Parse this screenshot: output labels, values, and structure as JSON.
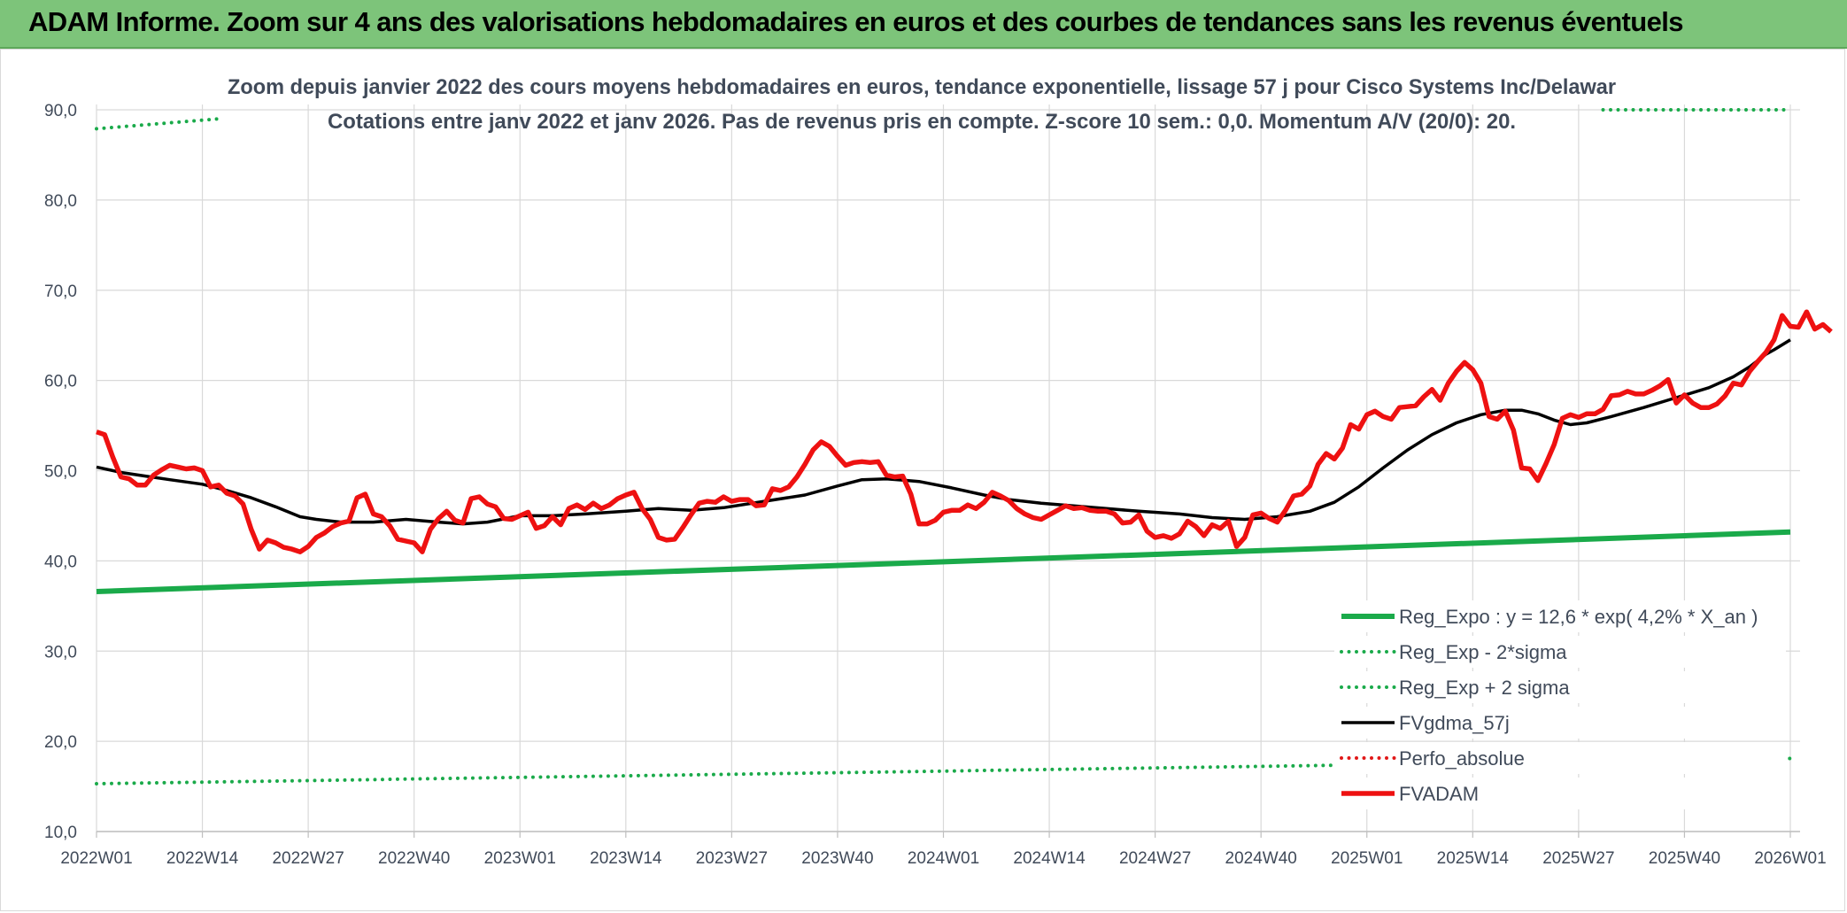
{
  "header": {
    "title": "ADAM Informe. Zoom sur 4 ans des valorisations hebdomadaires en euros et des courbes de tendances sans les revenus éventuels"
  },
  "colors": {
    "header_bg": "#7dc47a",
    "reg_expo": "#1aaa4a",
    "fvgdma": "#000000",
    "fvadam": "#ee1111",
    "perfo": "#e11818",
    "grid": "#d9d9d9",
    "axis_text": "#404a59"
  },
  "chart_data": {
    "type": "line",
    "title_line1": "Zoom depuis janvier 2022 des cours moyens hebdomadaires en euros, tendance exponentielle, lissage 57 j pour Cisco Systems Inc/Delawar",
    "title_line2": "Cotations entre janv 2022 et janv 2026. Pas de revenus pris en compte. Z-score 10 sem.: 0,0. Momentum A/V (20/0): 20.",
    "x_tick_labels": [
      "2022W01",
      "2022W14",
      "2022W27",
      "2022W40",
      "2023W01",
      "2023W14",
      "2023W27",
      "2023W40",
      "2024W01",
      "2024W14",
      "2024W27",
      "2024W40",
      "2025W01",
      "2025W14",
      "2025W27",
      "2025W40",
      "2026W01"
    ],
    "x_range_weeks": [
      0,
      208
    ],
    "y_tick_labels": [
      "10,0",
      "20,0",
      "30,0",
      "40,0",
      "50,0",
      "60,0",
      "70,0",
      "80,0",
      "90,0"
    ],
    "ylim": [
      10,
      90
    ],
    "grid": true,
    "legend_position": "bottom-right",
    "series": [
      {
        "name": "Reg_Expo : y = 12,6 * exp( 4,2% *  X_an )",
        "style": "solid-thick",
        "color": "#1aaa4a",
        "points": [
          [
            0,
            36.6
          ],
          [
            208,
            43.2
          ]
        ]
      },
      {
        "name": "Reg_Exp - 2*sigma",
        "style": "dotted",
        "color": "#1aaa4a",
        "points": [
          [
            0,
            15.3
          ],
          [
            208,
            18.1
          ]
        ]
      },
      {
        "name": "Reg_Exp + 2 sigma",
        "style": "dotted",
        "color": "#1aaa4a",
        "points": [
          [
            0,
            87.9
          ],
          [
            15,
            89.0
          ]
        ],
        "points_right": [
          [
            185,
            90.0
          ],
          [
            208,
            90.0
          ]
        ]
      },
      {
        "name": "FVgdma_57j",
        "style": "solid",
        "color": "#000000",
        "points": [
          [
            0,
            50.4
          ],
          [
            3,
            49.8
          ],
          [
            6,
            49.4
          ],
          [
            9,
            49.0
          ],
          [
            13,
            48.5
          ],
          [
            16,
            47.8
          ],
          [
            19,
            47.0
          ],
          [
            22,
            46.0
          ],
          [
            25,
            44.9
          ],
          [
            27,
            44.6
          ],
          [
            30,
            44.3
          ],
          [
            34,
            44.3
          ],
          [
            38,
            44.6
          ],
          [
            42,
            44.3
          ],
          [
            45,
            44.1
          ],
          [
            48,
            44.3
          ],
          [
            52,
            45.0
          ],
          [
            56,
            45.0
          ],
          [
            60,
            45.2
          ],
          [
            65,
            45.5
          ],
          [
            69,
            45.8
          ],
          [
            73,
            45.6
          ],
          [
            77,
            45.9
          ],
          [
            82,
            46.6
          ],
          [
            87,
            47.3
          ],
          [
            91,
            48.3
          ],
          [
            94,
            49.0
          ],
          [
            97,
            49.1
          ],
          [
            101,
            48.8
          ],
          [
            105,
            48.1
          ],
          [
            109,
            47.3
          ],
          [
            112,
            46.8
          ],
          [
            116,
            46.4
          ],
          [
            120,
            46.1
          ],
          [
            124,
            45.8
          ],
          [
            128,
            45.5
          ],
          [
            133,
            45.2
          ],
          [
            137,
            44.8
          ],
          [
            141,
            44.6
          ],
          [
            145,
            44.9
          ],
          [
            149,
            45.5
          ],
          [
            152,
            46.5
          ],
          [
            155,
            48.2
          ],
          [
            158,
            50.3
          ],
          [
            161,
            52.3
          ],
          [
            164,
            54.0
          ],
          [
            167,
            55.3
          ],
          [
            170,
            56.2
          ],
          [
            173,
            56.7
          ],
          [
            175,
            56.7
          ],
          [
            177,
            56.3
          ],
          [
            179,
            55.6
          ],
          [
            181,
            55.1
          ],
          [
            183,
            55.3
          ],
          [
            186,
            56.0
          ],
          [
            190,
            57.0
          ],
          [
            194,
            58.1
          ],
          [
            198,
            59.2
          ],
          [
            201,
            60.4
          ],
          [
            203,
            61.5
          ],
          [
            205,
            62.9
          ],
          [
            206,
            63.4
          ],
          [
            208,
            64.5
          ]
        ]
      },
      {
        "name": "Perfo_absolue",
        "style": "dotted",
        "color": "#e11818",
        "points": []
      },
      {
        "name": "FVADAM",
        "style": "solid-thick",
        "color": "#ee1111",
        "points": [
          [
            0,
            54.3
          ],
          [
            1,
            54.0
          ],
          [
            2,
            51.5
          ],
          [
            3,
            49.3
          ],
          [
            4,
            49.1
          ],
          [
            5,
            48.4
          ],
          [
            6,
            48.4
          ],
          [
            7,
            49.5
          ],
          [
            8,
            50.1
          ],
          [
            9,
            50.6
          ],
          [
            10,
            50.4
          ],
          [
            11,
            50.2
          ],
          [
            12,
            50.3
          ],
          [
            13,
            50.0
          ],
          [
            14,
            48.2
          ],
          [
            15,
            48.4
          ],
          [
            16,
            47.5
          ],
          [
            17,
            47.2
          ],
          [
            18,
            46.3
          ],
          [
            19,
            43.5
          ],
          [
            20,
            41.3
          ],
          [
            21,
            42.3
          ],
          [
            22,
            42.0
          ],
          [
            23,
            41.5
          ],
          [
            24,
            41.3
          ],
          [
            25,
            41.0
          ],
          [
            26,
            41.6
          ],
          [
            27,
            42.6
          ],
          [
            28,
            43.1
          ],
          [
            29,
            43.8
          ],
          [
            30,
            44.2
          ],
          [
            31,
            44.4
          ],
          [
            32,
            47.0
          ],
          [
            33,
            47.4
          ],
          [
            34,
            45.2
          ],
          [
            35,
            44.9
          ],
          [
            36,
            43.9
          ],
          [
            37,
            42.4
          ],
          [
            38,
            42.2
          ],
          [
            39,
            42.0
          ],
          [
            40,
            41.0
          ],
          [
            41,
            43.5
          ],
          [
            42,
            44.7
          ],
          [
            43,
            45.5
          ],
          [
            44,
            44.5
          ],
          [
            45,
            44.2
          ],
          [
            46,
            46.9
          ],
          [
            47,
            47.1
          ],
          [
            48,
            46.3
          ],
          [
            49,
            46.0
          ],
          [
            50,
            44.7
          ],
          [
            51,
            44.6
          ],
          [
            52,
            45.0
          ],
          [
            53,
            45.4
          ],
          [
            54,
            43.6
          ],
          [
            55,
            43.9
          ],
          [
            56,
            44.9
          ],
          [
            57,
            44.0
          ],
          [
            58,
            45.8
          ],
          [
            59,
            46.2
          ],
          [
            60,
            45.7
          ],
          [
            61,
            46.4
          ],
          [
            62,
            45.8
          ],
          [
            63,
            46.2
          ],
          [
            64,
            46.9
          ],
          [
            65,
            47.3
          ],
          [
            66,
            47.6
          ],
          [
            67,
            45.8
          ],
          [
            68,
            44.6
          ],
          [
            69,
            42.6
          ],
          [
            70,
            42.3
          ],
          [
            71,
            42.4
          ],
          [
            72,
            43.7
          ],
          [
            73,
            45.1
          ],
          [
            74,
            46.4
          ],
          [
            75,
            46.6
          ],
          [
            76,
            46.5
          ],
          [
            77,
            47.1
          ],
          [
            78,
            46.6
          ],
          [
            79,
            46.8
          ],
          [
            80,
            46.8
          ],
          [
            81,
            46.1
          ],
          [
            82,
            46.2
          ],
          [
            83,
            48.0
          ],
          [
            84,
            47.8
          ],
          [
            85,
            48.2
          ],
          [
            86,
            49.3
          ],
          [
            87,
            50.7
          ],
          [
            88,
            52.3
          ],
          [
            89,
            53.2
          ],
          [
            90,
            52.7
          ],
          [
            91,
            51.6
          ],
          [
            92,
            50.6
          ],
          [
            93,
            50.9
          ],
          [
            94,
            51.0
          ],
          [
            95,
            50.9
          ],
          [
            96,
            51.0
          ],
          [
            97,
            49.5
          ],
          [
            98,
            49.3
          ],
          [
            99,
            49.4
          ],
          [
            100,
            47.4
          ],
          [
            101,
            44.1
          ],
          [
            102,
            44.1
          ],
          [
            103,
            44.5
          ],
          [
            104,
            45.4
          ],
          [
            105,
            45.6
          ],
          [
            106,
            45.6
          ],
          [
            107,
            46.2
          ],
          [
            108,
            45.8
          ],
          [
            109,
            46.5
          ],
          [
            110,
            47.6
          ],
          [
            111,
            47.2
          ],
          [
            112,
            46.7
          ],
          [
            113,
            45.8
          ],
          [
            114,
            45.2
          ],
          [
            115,
            44.8
          ],
          [
            116,
            44.6
          ],
          [
            117,
            45.1
          ],
          [
            118,
            45.6
          ],
          [
            119,
            46.1
          ],
          [
            120,
            45.8
          ],
          [
            121,
            45.9
          ],
          [
            122,
            45.6
          ],
          [
            123,
            45.5
          ],
          [
            124,
            45.5
          ],
          [
            125,
            45.2
          ],
          [
            126,
            44.2
          ],
          [
            127,
            44.3
          ],
          [
            128,
            45.1
          ],
          [
            129,
            43.3
          ],
          [
            130,
            42.6
          ],
          [
            131,
            42.8
          ],
          [
            132,
            42.5
          ],
          [
            133,
            43.0
          ],
          [
            134,
            44.4
          ],
          [
            135,
            43.8
          ],
          [
            136,
            42.8
          ],
          [
            137,
            44.0
          ],
          [
            138,
            43.6
          ],
          [
            139,
            44.4
          ],
          [
            140,
            41.6
          ],
          [
            141,
            42.6
          ],
          [
            142,
            45.1
          ],
          [
            143,
            45.3
          ],
          [
            144,
            44.7
          ],
          [
            145,
            44.3
          ],
          [
            146,
            45.6
          ],
          [
            147,
            47.2
          ],
          [
            148,
            47.4
          ],
          [
            149,
            48.3
          ],
          [
            150,
            50.7
          ],
          [
            151,
            51.9
          ],
          [
            152,
            51.3
          ],
          [
            153,
            52.5
          ],
          [
            154,
            55.1
          ],
          [
            155,
            54.6
          ],
          [
            156,
            56.2
          ],
          [
            157,
            56.6
          ],
          [
            158,
            56.0
          ],
          [
            159,
            55.7
          ],
          [
            160,
            57.0
          ],
          [
            161,
            57.1
          ],
          [
            162,
            57.2
          ],
          [
            163,
            58.2
          ],
          [
            164,
            59.0
          ],
          [
            165,
            57.8
          ],
          [
            166,
            59.7
          ],
          [
            167,
            61.0
          ],
          [
            168,
            62.0
          ],
          [
            169,
            61.2
          ],
          [
            170,
            59.7
          ],
          [
            171,
            56.0
          ],
          [
            172,
            55.7
          ],
          [
            173,
            56.6
          ],
          [
            174,
            54.5
          ],
          [
            175,
            50.3
          ],
          [
            176,
            50.2
          ],
          [
            177,
            48.9
          ],
          [
            178,
            50.8
          ],
          [
            179,
            52.9
          ],
          [
            180,
            55.8
          ],
          [
            181,
            56.2
          ],
          [
            182,
            55.9
          ],
          [
            183,
            56.3
          ],
          [
            184,
            56.3
          ],
          [
            185,
            56.8
          ],
          [
            186,
            58.3
          ],
          [
            187,
            58.4
          ],
          [
            188,
            58.8
          ],
          [
            189,
            58.5
          ],
          [
            190,
            58.5
          ],
          [
            191,
            58.9
          ],
          [
            192,
            59.4
          ],
          [
            193,
            60.1
          ],
          [
            194,
            57.5
          ],
          [
            195,
            58.4
          ],
          [
            196,
            57.5
          ],
          [
            197,
            57.0
          ],
          [
            198,
            57.0
          ],
          [
            199,
            57.4
          ],
          [
            200,
            58.3
          ],
          [
            201,
            59.7
          ],
          [
            202,
            59.5
          ],
          [
            203,
            61.0
          ],
          [
            204,
            62.1
          ],
          [
            205,
            63.1
          ],
          [
            206,
            64.5
          ],
          [
            207,
            67.2
          ],
          [
            208,
            66.0
          ],
          [
            209,
            65.9
          ],
          [
            210,
            67.6
          ],
          [
            211,
            65.7
          ],
          [
            212,
            66.2
          ],
          [
            213,
            65.4
          ]
        ]
      }
    ]
  }
}
